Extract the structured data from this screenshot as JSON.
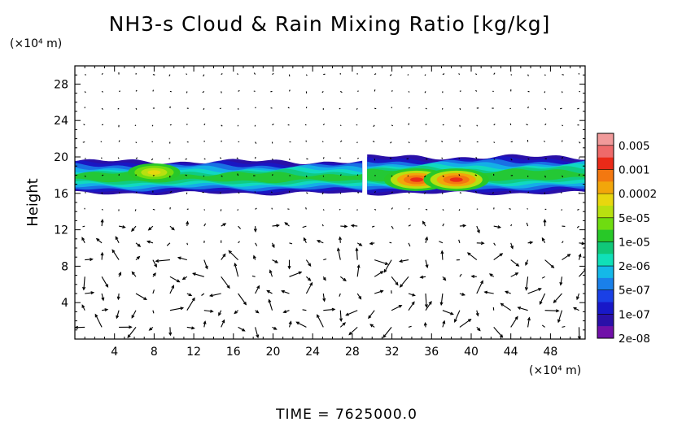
{
  "chart_data": {
    "type": "heatmap",
    "title": "NH3-s Cloud & Rain Mixing Ratio [kg/kg]",
    "ylabel": "Height",
    "y_unit": "(×10⁴ m)",
    "x_unit": "(×10⁴ m)",
    "xlim": [
      0,
      51.5
    ],
    "ylim": [
      0,
      30
    ],
    "x_ticks": [
      4,
      8,
      12,
      16,
      20,
      24,
      28,
      32,
      36,
      40,
      44,
      48
    ],
    "y_ticks": [
      4,
      8,
      12,
      16,
      20,
      24,
      28
    ],
    "x_tick_labels": [
      "4",
      "8",
      "12",
      "16",
      "20",
      "24",
      "28",
      "32",
      "36",
      "40",
      "44",
      "48"
    ],
    "y_tick_labels": [
      "4",
      "8",
      "12",
      "16",
      "20",
      "24",
      "28"
    ],
    "colorbar": {
      "labels": [
        "0.005",
        "0.001",
        "0.0002",
        "5e-05",
        "1e-05",
        "2e-06",
        "5e-07",
        "1e-07",
        "2e-08"
      ],
      "colors": [
        "#f19a9a",
        "#ee6a6a",
        "#ea2a18",
        "#f37810",
        "#f2a60a",
        "#e8d70e",
        "#b8e010",
        "#6fdc10",
        "#28c828",
        "#10c878",
        "#10e0b8",
        "#14b8e8",
        "#1a80ea",
        "#1a40e6",
        "#1818c8",
        "#2a10a8",
        "#7010a8"
      ]
    },
    "cloud_bands": [
      {
        "x_start": 0,
        "x_end": 29,
        "y_bottom": 16.0,
        "y_top": 19.5
      },
      {
        "x_start": 29.5,
        "x_end": 51.5,
        "y_bottom": 16.0,
        "y_top": 20.0
      }
    ],
    "peak_regions": [
      {
        "x": 34.5,
        "y": 17.5,
        "level": "0.001"
      },
      {
        "x": 38.5,
        "y": 17.5,
        "level": "0.001"
      },
      {
        "x": 8,
        "y": 18.3,
        "level": "5e-05"
      }
    ],
    "wind_vectors": "present",
    "grid": false,
    "time_label": "TIME",
    "time_value": "7625000.0"
  }
}
